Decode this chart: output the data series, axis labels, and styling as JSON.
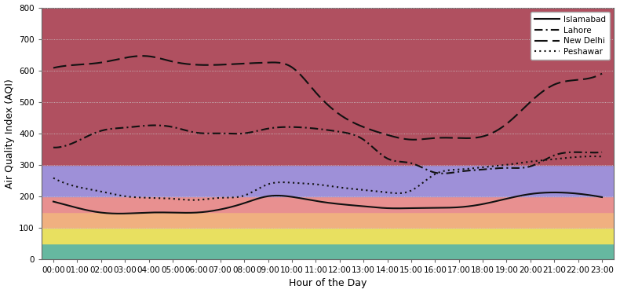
{
  "hours": [
    "00:00",
    "01:00",
    "02:00",
    "03:00",
    "04:00",
    "05:00",
    "06:00",
    "07:00",
    "08:00",
    "09:00",
    "10:00",
    "11:00",
    "12:00",
    "13:00",
    "14:00",
    "15:00",
    "16:00",
    "17:00",
    "18:00",
    "19:00",
    "20:00",
    "21:00",
    "22:00",
    "23:00"
  ],
  "islamabad": [
    183,
    163,
    148,
    145,
    148,
    148,
    148,
    158,
    178,
    200,
    198,
    185,
    175,
    168,
    162,
    162,
    163,
    165,
    175,
    192,
    207,
    212,
    208,
    197
  ],
  "lahore": [
    355,
    375,
    408,
    418,
    425,
    420,
    402,
    400,
    400,
    415,
    420,
    415,
    405,
    380,
    320,
    305,
    275,
    278,
    285,
    290,
    295,
    330,
    340,
    340
  ],
  "new_delhi": [
    608,
    618,
    625,
    640,
    645,
    628,
    618,
    618,
    622,
    625,
    610,
    530,
    460,
    420,
    395,
    380,
    385,
    385,
    390,
    430,
    500,
    555,
    570,
    590
  ],
  "peshawar": [
    258,
    230,
    215,
    200,
    195,
    192,
    188,
    195,
    202,
    238,
    243,
    238,
    228,
    220,
    212,
    218,
    270,
    285,
    292,
    300,
    310,
    318,
    325,
    326
  ],
  "xlabel": "Hour of the Day",
  "ylabel": "Air Quality Index (AQI)",
  "ylim": [
    0,
    800
  ],
  "yticks": [
    0,
    100,
    200,
    300,
    400,
    500,
    600,
    700,
    800
  ],
  "bands": [
    {
      "ymin": 0,
      "ymax": 50,
      "color": "#66b8a0"
    },
    {
      "ymin": 50,
      "ymax": 100,
      "color": "#e8e060"
    },
    {
      "ymin": 100,
      "ymax": 150,
      "color": "#f0b080"
    },
    {
      "ymin": 150,
      "ymax": 200,
      "color": "#e89090"
    },
    {
      "ymin": 200,
      "ymax": 300,
      "color": "#9e90d8"
    },
    {
      "ymin": 300,
      "ymax": 800,
      "color": "#b05060"
    }
  ],
  "line_color": "#111111",
  "grid_color": "#cccccc",
  "figsize": [
    7.9,
    3.73
  ],
  "dpi": 100
}
